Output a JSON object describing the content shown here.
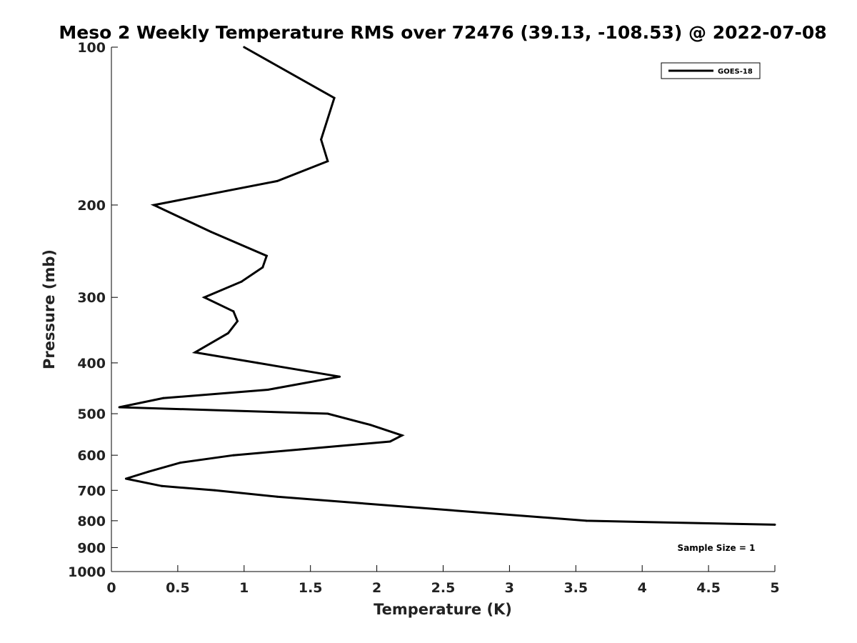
{
  "chart_data": {
    "type": "line",
    "title": "Meso 2 Weekly Temperature RMS over 72476 (39.13, -108.53) @ 2022-07-08",
    "xlabel": "Temperature (K)",
    "ylabel": "Pressure (mb)",
    "xlim": [
      0,
      5
    ],
    "ylim": [
      100,
      1000
    ],
    "y_scale": "log",
    "y_reversed": true,
    "grid": false,
    "legend_position": "top-right",
    "x_ticks": [
      0,
      0.5,
      1,
      1.5,
      2,
      2.5,
      3,
      3.5,
      4,
      4.5,
      5
    ],
    "x_tick_labels": [
      "0",
      "0.5",
      "1",
      "1.5",
      "2",
      "2.5",
      "3",
      "3.5",
      "4",
      "4.5",
      "5"
    ],
    "y_ticks": [
      100,
      200,
      300,
      400,
      500,
      600,
      700,
      800,
      900,
      1000
    ],
    "y_tick_labels": [
      "100",
      "200",
      "300",
      "400",
      "500",
      "600",
      "700",
      "800",
      "900",
      "1000"
    ],
    "series": [
      {
        "name": "GOES-18",
        "color": "#000000",
        "points": [
          {
            "x": 1.0,
            "p": 100
          },
          {
            "x": 1.68,
            "p": 125
          },
          {
            "x": 1.58,
            "p": 150
          },
          {
            "x": 1.63,
            "p": 165
          },
          {
            "x": 1.25,
            "p": 180
          },
          {
            "x": 0.32,
            "p": 200
          },
          {
            "x": 0.75,
            "p": 225
          },
          {
            "x": 1.17,
            "p": 250
          },
          {
            "x": 1.14,
            "p": 263
          },
          {
            "x": 0.98,
            "p": 280
          },
          {
            "x": 0.7,
            "p": 300
          },
          {
            "x": 0.92,
            "p": 319
          },
          {
            "x": 0.95,
            "p": 333
          },
          {
            "x": 0.88,
            "p": 351
          },
          {
            "x": 0.63,
            "p": 382
          },
          {
            "x": 1.1,
            "p": 400
          },
          {
            "x": 1.72,
            "p": 425
          },
          {
            "x": 1.18,
            "p": 450
          },
          {
            "x": 0.39,
            "p": 467
          },
          {
            "x": 0.06,
            "p": 486
          },
          {
            "x": 1.63,
            "p": 500
          },
          {
            "x": 1.95,
            "p": 525
          },
          {
            "x": 2.19,
            "p": 550
          },
          {
            "x": 2.1,
            "p": 565
          },
          {
            "x": 1.42,
            "p": 585
          },
          {
            "x": 0.92,
            "p": 600
          },
          {
            "x": 0.52,
            "p": 620
          },
          {
            "x": 0.28,
            "p": 645
          },
          {
            "x": 0.11,
            "p": 665
          },
          {
            "x": 0.38,
            "p": 687
          },
          {
            "x": 0.78,
            "p": 700
          },
          {
            "x": 1.25,
            "p": 720
          },
          {
            "x": 3.58,
            "p": 800
          },
          {
            "x": 5.0,
            "p": 814
          }
        ]
      }
    ],
    "annotation": "Sample Size = 1"
  }
}
